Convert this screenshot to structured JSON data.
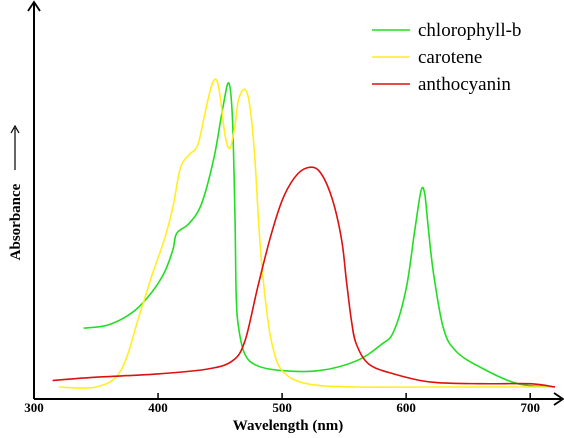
{
  "chart_data": {
    "type": "line",
    "title": "",
    "xlabel": "Wavelength (nm)",
    "ylabel": "Absorbance",
    "xlim": [
      300,
      720
    ],
    "x_ticks": [
      300,
      400,
      500,
      600,
      700
    ],
    "x_tick_labels": [
      "300",
      "400",
      "500",
      "600",
      "700"
    ],
    "y_ticks": [],
    "ylim": [
      0,
      1
    ],
    "grid": false,
    "legend_position": "top-right",
    "series": [
      {
        "name": "chlorophyll-b",
        "color": "#22dd22",
        "x": [
          340,
          360,
          380,
          395,
          405,
          412,
          415,
          425,
          435,
          445,
          452,
          457,
          460,
          462,
          463,
          465,
          470,
          480,
          500,
          530,
          560,
          580,
          590,
          600,
          607,
          612,
          615,
          618,
          622,
          630,
          640,
          660,
          690,
          720
        ],
        "y": [
          0.18,
          0.19,
          0.23,
          0.29,
          0.35,
          0.42,
          0.47,
          0.5,
          0.56,
          0.7,
          0.85,
          0.93,
          0.82,
          0.52,
          0.28,
          0.18,
          0.1,
          0.065,
          0.05,
          0.05,
          0.08,
          0.13,
          0.17,
          0.3,
          0.48,
          0.6,
          0.59,
          0.48,
          0.35,
          0.18,
          0.11,
          0.06,
          0.01,
          0.0
        ]
      },
      {
        "name": "carotene",
        "color": "#ffee22",
        "x": [
          320,
          350,
          370,
          385,
          395,
          405,
          412,
          418,
          425,
          432,
          438,
          443,
          447,
          450,
          454,
          458,
          462,
          465,
          470,
          474,
          478,
          482,
          487,
          492,
          500,
          520,
          560,
          620,
          720
        ],
        "y": [
          0.0,
          0.0,
          0.05,
          0.22,
          0.34,
          0.45,
          0.55,
          0.67,
          0.71,
          0.74,
          0.84,
          0.92,
          0.94,
          0.89,
          0.77,
          0.73,
          0.8,
          0.88,
          0.91,
          0.86,
          0.7,
          0.45,
          0.25,
          0.13,
          0.05,
          0.01,
          0.0,
          0.0,
          0.0
        ]
      },
      {
        "name": "anthocyanin",
        "color": "#dd1111",
        "x": [
          315,
          350,
          400,
          440,
          460,
          470,
          480,
          490,
          500,
          510,
          520,
          530,
          540,
          548,
          552,
          556,
          560,
          570,
          590,
          620,
          660,
          700,
          720
        ],
        "y": [
          0.02,
          0.03,
          0.04,
          0.055,
          0.08,
          0.14,
          0.3,
          0.45,
          0.57,
          0.64,
          0.67,
          0.66,
          0.58,
          0.45,
          0.32,
          0.2,
          0.13,
          0.07,
          0.04,
          0.015,
          0.01,
          0.01,
          0.0
        ]
      }
    ]
  }
}
